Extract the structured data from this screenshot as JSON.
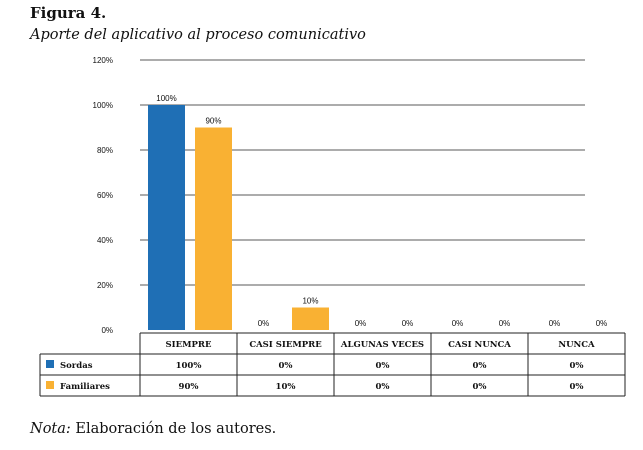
{
  "figure": {
    "label": "Figura 4.",
    "title": "Aporte del aplicativo al proceso comunicativo",
    "note_prefix": "Nota:",
    "note_text": " Elaboración de los autores."
  },
  "chart_data": {
    "type": "bar",
    "categories": [
      "SIEMPRE",
      "CASI SIEMPRE",
      "ALGUNAS VECES",
      "CASI NUNCA",
      "NUNCA"
    ],
    "series": [
      {
        "name": "Sordas",
        "values": [
          100,
          0,
          0,
          0,
          0
        ],
        "labels": [
          "100%",
          "0%",
          "0%",
          "0%",
          "0%"
        ],
        "color": "#1f6fb5"
      },
      {
        "name": "Familiares",
        "values": [
          90,
          10,
          0,
          0,
          0
        ],
        "labels": [
          "90%",
          "10%",
          "0%",
          "0%",
          "0%"
        ],
        "color": "#f9b133"
      }
    ],
    "y_ticks": [
      "0%",
      "20%",
      "40%",
      "60%",
      "80%",
      "100%",
      "120%"
    ],
    "ylim": [
      0,
      120
    ],
    "grid": true,
    "legend": "data-table-below"
  }
}
